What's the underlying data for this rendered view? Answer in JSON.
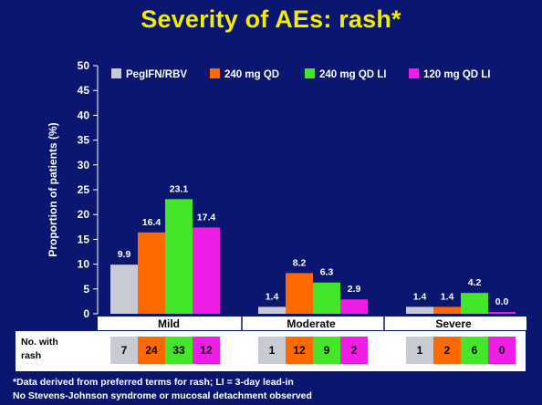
{
  "title": "Severity of AEs: rash*",
  "chart_data": {
    "type": "bar",
    "categories": [
      "Mild",
      "Moderate",
      "Severe"
    ],
    "ylabel": "Proportion of patients (%)",
    "ylim": [
      0,
      50
    ],
    "yticks": [
      0,
      5,
      10,
      15,
      20,
      25,
      30,
      35,
      40,
      45,
      50
    ],
    "grid": false,
    "legend_position": "top",
    "series": [
      {
        "name": "PegIFN/RBV",
        "color": "#c8cbd3",
        "values": [
          9.9,
          1.4,
          1.4
        ],
        "labels": [
          "9.9",
          "1.4",
          "1.4"
        ]
      },
      {
        "name": "240 mg QD",
        "color": "#ff6a00",
        "values": [
          16.4,
          8.2,
          1.4
        ],
        "labels": [
          "16.4",
          "8.2",
          "1.4"
        ]
      },
      {
        "name": "240 mg QD LI",
        "color": "#44e62a",
        "values": [
          23.1,
          6.3,
          4.2
        ],
        "labels": [
          "23.1",
          "6.3",
          "4.2"
        ]
      },
      {
        "name": "120 mg QD LI",
        "color": "#ee1ee6",
        "values": [
          17.4,
          2.9,
          0.0
        ],
        "labels": [
          "17.4",
          "2.9",
          "0.0"
        ]
      }
    ]
  },
  "counts_table": {
    "label": "No. with rash",
    "groups": [
      [
        "7",
        "24",
        "33",
        "12"
      ],
      [
        "1",
        "12",
        "9",
        "2"
      ],
      [
        "1",
        "2",
        "6",
        "0"
      ]
    ]
  },
  "footnotes": [
    "*Data derived from preferred terms for rash; LI = 3-day lead-in",
    "No Stevens-Johnson syndrome or mucosal detachment observed"
  ]
}
